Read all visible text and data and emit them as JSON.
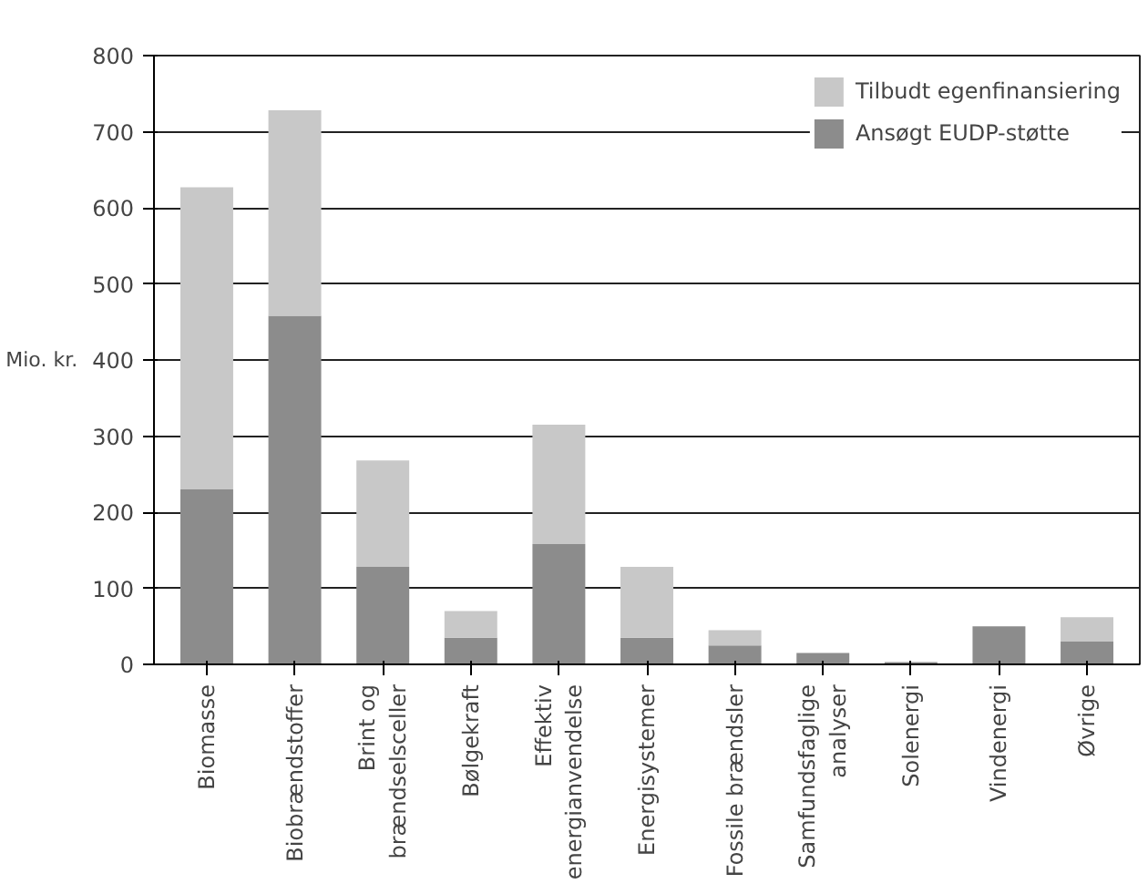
{
  "chart_data": {
    "type": "bar",
    "stacked": true,
    "ylabel": "Mio. kr.",
    "categories": [
      "Biomasse",
      "Biobrændstoffer",
      "Brint og\nbrændselsceller",
      "Bølgekraft",
      "Effektiv\nenergianvendelse",
      "Energisystemer",
      "Fossile brændsler",
      "Samfundsfaglige\nanalyser",
      "Solenergi",
      "Vindenergi",
      "Øvrige"
    ],
    "series": [
      {
        "name": "Ansøgt EUDP-støtte",
        "color": "#8c8c8c",
        "values": [
          230,
          458,
          128,
          35,
          158,
          35,
          25,
          15,
          3,
          50,
          30
        ]
      },
      {
        "name": "Tilbudt egenfinansiering",
        "color": "#c8c8c8",
        "values": [
          397,
          270,
          140,
          35,
          157,
          93,
          20,
          null,
          null,
          null,
          32
        ]
      }
    ],
    "ylim": [
      0,
      800
    ],
    "yticks": [
      0,
      100,
      200,
      300,
      400,
      500,
      600,
      700,
      800
    ],
    "grid": "y",
    "legend": "top right"
  }
}
